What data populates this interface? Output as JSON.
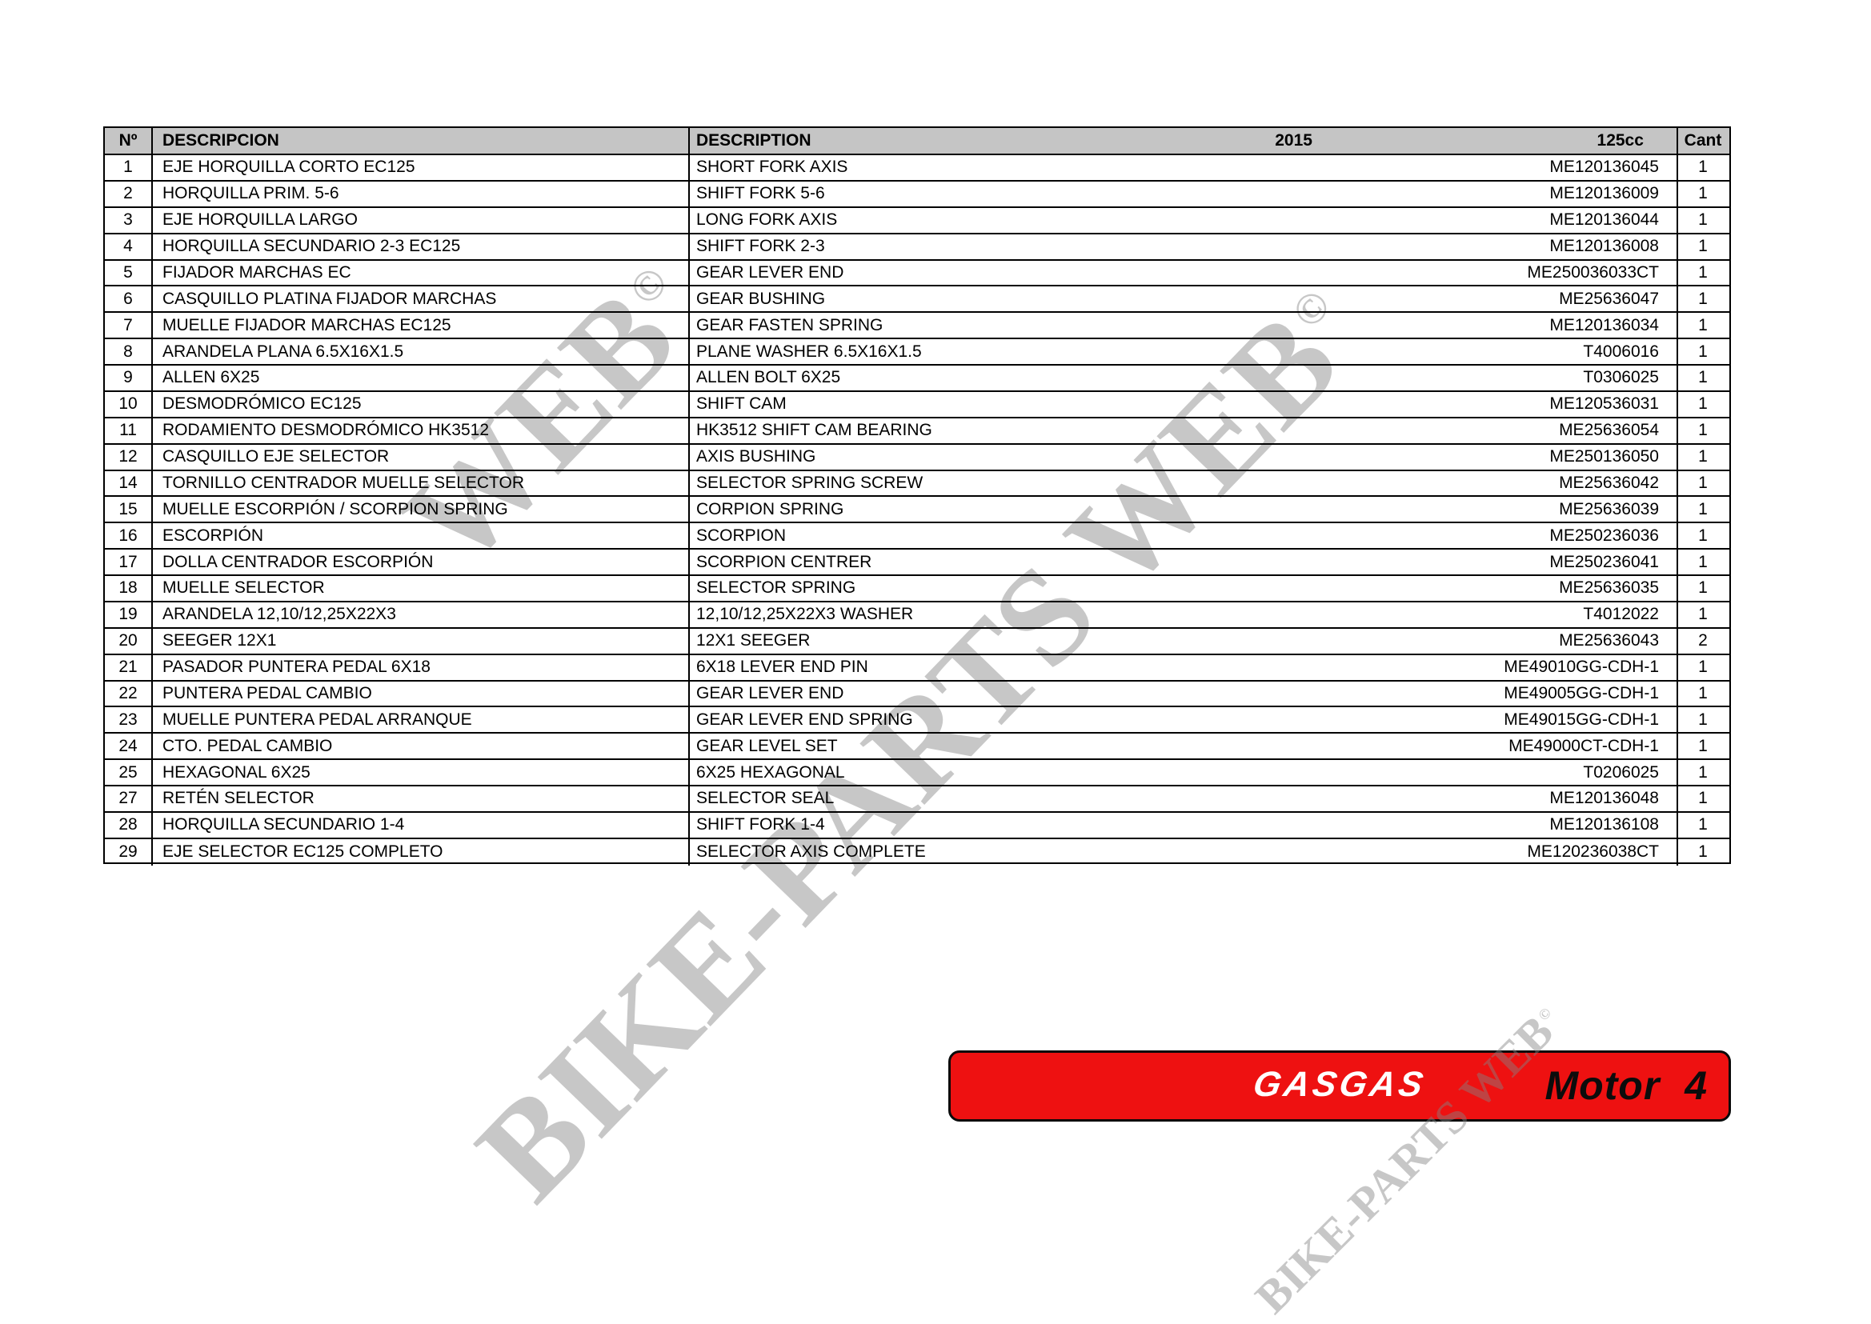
{
  "colors": {
    "banner_red": "#ee1111",
    "header_gray": "#c5c5c5",
    "watermark_gray": "rgba(130,130,130,0.45)"
  },
  "watermarks": {
    "main_text": "BIKE-PARTS WEB",
    "ghost_text": "WEB",
    "small_text": "BIKE-PARTS WEB",
    "copyright_symbol": "©"
  },
  "banner": {
    "brand": "GASGAS",
    "model_label": "Motor 4"
  },
  "table": {
    "headers": {
      "num": "Nº",
      "descripcion": "DESCRIPCION",
      "description": "DESCRIPTION",
      "year": "2015",
      "cc": "125cc",
      "cant": "Cant"
    },
    "rows": [
      {
        "n": "1",
        "es": "EJE HORQUILLA CORTO EC125",
        "en": "SHORT FORK AXIS",
        "pn": "ME120136045",
        "qty": "1"
      },
      {
        "n": "2",
        "es": "HORQUILLA PRIM. 5-6",
        "en": "SHIFT FORK 5-6",
        "pn": "ME120136009",
        "qty": "1"
      },
      {
        "n": "3",
        "es": "EJE HORQUILLA LARGO",
        "en": "LONG FORK AXIS",
        "pn": "ME120136044",
        "qty": "1"
      },
      {
        "n": "4",
        "es": "HORQUILLA SECUNDARIO 2-3 EC125",
        "en": "SHIFT FORK 2-3",
        "pn": "ME120136008",
        "qty": "1"
      },
      {
        "n": "5",
        "es": "FIJADOR MARCHAS EC",
        "en": "GEAR LEVER END",
        "pn": "ME250036033CT",
        "qty": "1"
      },
      {
        "n": "6",
        "es": "CASQUILLO PLATINA FIJADOR MARCHAS",
        "en": "GEAR BUSHING",
        "pn": "ME25636047",
        "qty": "1"
      },
      {
        "n": "7",
        "es": "MUELLE FIJADOR MARCHAS EC125",
        "en": "GEAR FASTEN SPRING",
        "pn": "ME120136034",
        "qty": "1"
      },
      {
        "n": "8",
        "es": "ARANDELA PLANA 6.5X16X1.5",
        "en": "PLANE WASHER 6.5X16X1.5",
        "pn": "T4006016",
        "qty": "1"
      },
      {
        "n": "9",
        "es": "ALLEN 6X25",
        "en": "ALLEN BOLT 6X25",
        "pn": "T0306025",
        "qty": "1"
      },
      {
        "n": "10",
        "es": "DESMODRÓMICO EC125",
        "en": "SHIFT CAM",
        "pn": "ME120536031",
        "qty": "1"
      },
      {
        "n": "11",
        "es": "RODAMIENTO DESMODRÓMICO HK3512",
        "en": "HK3512 SHIFT CAM BEARING",
        "pn": "ME25636054",
        "qty": "1"
      },
      {
        "n": "12",
        "es": "CASQUILLO EJE SELECTOR",
        "en": "AXIS BUSHING",
        "pn": "ME250136050",
        "qty": "1"
      },
      {
        "n": "14",
        "es": "TORNILLO CENTRADOR MUELLE SELECTOR",
        "en": "SELECTOR SPRING SCREW",
        "pn": "ME25636042",
        "qty": "1"
      },
      {
        "n": "15",
        "es": "MUELLE ESCORPIÓN / SCORPION SPRING",
        "en": "CORPION SPRING",
        "pn": "ME25636039",
        "qty": "1"
      },
      {
        "n": "16",
        "es": "ESCORPIÓN",
        "en": "SCORPION",
        "pn": "ME250236036",
        "qty": "1"
      },
      {
        "n": "17",
        "es": "DOLLA CENTRADOR ESCORPIÓN",
        "en": "SCORPION CENTRER",
        "pn": "ME250236041",
        "qty": "1"
      },
      {
        "n": "18",
        "es": "MUELLE SELECTOR",
        "en": "SELECTOR SPRING",
        "pn": "ME25636035",
        "qty": "1"
      },
      {
        "n": "19",
        "es": "ARANDELA 12,10/12,25X22X3",
        "en": "12,10/12,25X22X3 WASHER",
        "pn": "T4012022",
        "qty": "1"
      },
      {
        "n": "20",
        "es": "SEEGER 12X1",
        "en": "12X1 SEEGER",
        "pn": "ME25636043",
        "qty": "2"
      },
      {
        "n": "21",
        "es": "PASADOR PUNTERA PEDAL 6X18",
        "en": "6X18 LEVER END PIN",
        "pn": "ME49010GG-CDH-1",
        "qty": "1"
      },
      {
        "n": "22",
        "es": "PUNTERA PEDAL CAMBIO",
        "en": "GEAR LEVER END",
        "pn": "ME49005GG-CDH-1",
        "qty": "1"
      },
      {
        "n": "23",
        "es": "MUELLE PUNTERA PEDAL ARRANQUE",
        "en": "GEAR LEVER END SPRING",
        "pn": "ME49015GG-CDH-1",
        "qty": "1"
      },
      {
        "n": "24",
        "es": "CTO. PEDAL CAMBIO",
        "en": "GEAR LEVEL SET",
        "pn": "ME49000CT-CDH-1",
        "qty": "1"
      },
      {
        "n": "25",
        "es": "HEXAGONAL 6X25",
        "en": "6X25 HEXAGONAL",
        "pn": "T0206025",
        "qty": "1"
      },
      {
        "n": "27",
        "es": "RETÉN SELECTOR",
        "en": "SELECTOR SEAL",
        "pn": "ME120136048",
        "qty": "1"
      },
      {
        "n": "28",
        "es": "HORQUILLA SECUNDARIO 1-4",
        "en": "SHIFT FORK 1-4",
        "pn": "ME120136108",
        "qty": "1"
      },
      {
        "n": "29",
        "es": "EJE SELECTOR EC125 COMPLETO",
        "en": "SELECTOR AXIS COMPLETE",
        "pn": "ME120236038CT",
        "qty": "1"
      }
    ]
  }
}
